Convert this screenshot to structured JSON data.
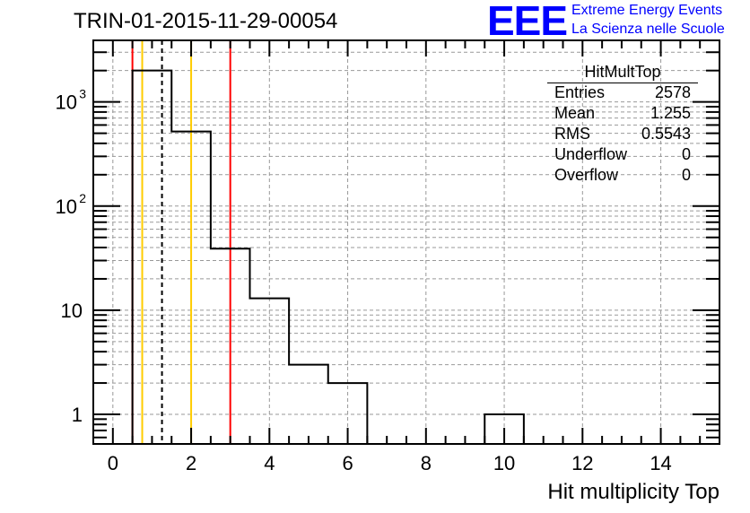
{
  "chart_data": {
    "type": "bar",
    "title": "TRIN-01-2015-11-29-00054",
    "xlabel": "Hit multiplicity Top",
    "ylabel": "",
    "xlim": [
      -0.5,
      15.5
    ],
    "ylim": [
      0.52,
      3900
    ],
    "yscale": "log",
    "grid": true,
    "bins": [
      {
        "low": 0.5,
        "high": 1.5,
        "value": 2000
      },
      {
        "low": 1.5,
        "high": 2.5,
        "value": 520
      },
      {
        "low": 2.5,
        "high": 3.5,
        "value": 39
      },
      {
        "low": 3.5,
        "high": 4.5,
        "value": 13
      },
      {
        "low": 4.5,
        "high": 5.5,
        "value": 3
      },
      {
        "low": 5.5,
        "high": 6.5,
        "value": 2
      },
      {
        "low": 9.5,
        "high": 10.5,
        "value": 1
      }
    ],
    "xticks": [
      "0",
      "2",
      "4",
      "6",
      "8",
      "10",
      "12",
      "14"
    ],
    "yticks": [
      {
        "v": 1,
        "label": "1"
      },
      {
        "v": 10,
        "label": "10"
      },
      {
        "v": 100,
        "label": "10",
        "exp": "2"
      },
      {
        "v": 1000,
        "label": "10",
        "exp": "3"
      }
    ],
    "markers": [
      {
        "x": 0.5,
        "color": "#ff0000",
        "style": "solid"
      },
      {
        "x": 3.0,
        "color": "#ff0000",
        "style": "solid"
      },
      {
        "x": 0.75,
        "color": "#ffcc00",
        "style": "solid"
      },
      {
        "x": 2.0,
        "color": "#ffcc00",
        "style": "solid"
      },
      {
        "x": 1.255,
        "color": "#000000",
        "style": "dashed"
      }
    ],
    "stats": {
      "name": "HitMultTop",
      "rows": [
        {
          "label": "Entries",
          "value": "2578"
        },
        {
          "label": "Mean",
          "value": "1.255"
        },
        {
          "label": "RMS",
          "value": "0.5543"
        },
        {
          "label": "Underflow",
          "value": "0"
        },
        {
          "label": "Overflow",
          "value": "0"
        }
      ]
    }
  },
  "logo": {
    "text": "EEE",
    "line1": "Extreme Energy Events",
    "line2": "La Scienza nelle Scuole",
    "color": "#0000ff"
  }
}
